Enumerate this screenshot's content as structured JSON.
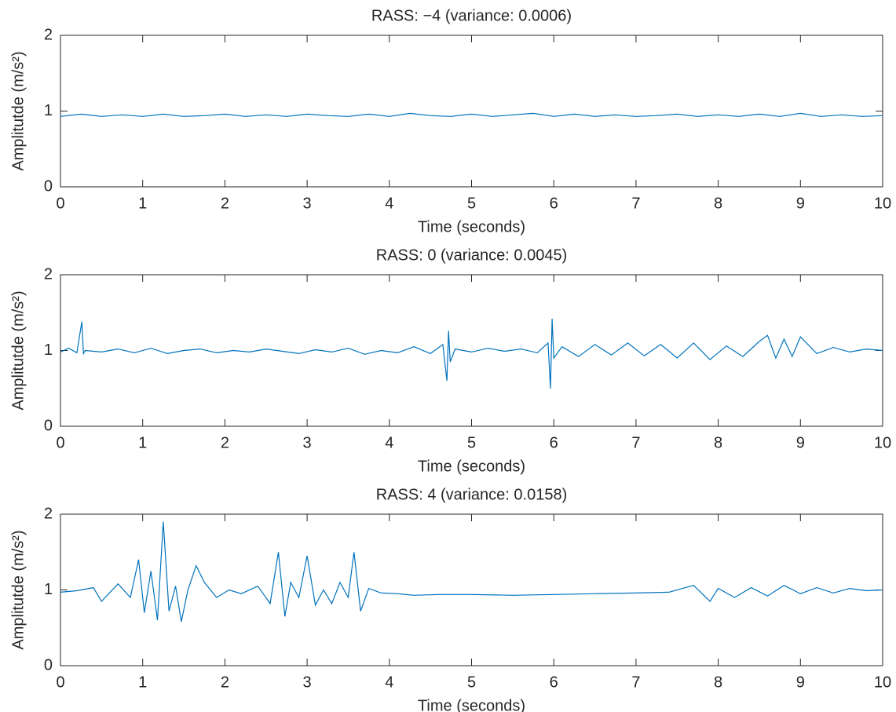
{
  "chart_data": [
    {
      "type": "line",
      "title": "RASS: −4 (variance: 0.0006)",
      "xlabel": "Time (seconds)",
      "ylabel": "Amplitutde (m/s²)",
      "x": [
        0,
        0.25,
        0.5,
        0.75,
        1,
        1.25,
        1.5,
        1.75,
        2,
        2.25,
        2.5,
        2.75,
        3,
        3.25,
        3.5,
        3.75,
        4,
        4.25,
        4.5,
        4.75,
        5,
        5.25,
        5.5,
        5.75,
        6,
        6.25,
        6.5,
        6.75,
        7,
        7.25,
        7.5,
        7.75,
        8,
        8.25,
        8.5,
        8.75,
        9,
        9.25,
        9.5,
        9.75,
        10
      ],
      "values": [
        0.93,
        0.96,
        0.93,
        0.95,
        0.93,
        0.96,
        0.93,
        0.94,
        0.96,
        0.93,
        0.95,
        0.93,
        0.96,
        0.94,
        0.93,
        0.96,
        0.93,
        0.97,
        0.94,
        0.93,
        0.96,
        0.93,
        0.95,
        0.97,
        0.93,
        0.96,
        0.93,
        0.95,
        0.93,
        0.94,
        0.96,
        0.93,
        0.95,
        0.93,
        0.96,
        0.93,
        0.97,
        0.93,
        0.95,
        0.93,
        0.94
      ],
      "color": "#0072bd",
      "xlim": [
        0,
        10
      ],
      "ylim": [
        0,
        2
      ],
      "xticks": [
        0,
        1,
        2,
        3,
        4,
        5,
        6,
        7,
        8,
        9,
        10
      ],
      "yticks": [
        0,
        1,
        2
      ]
    },
    {
      "type": "line",
      "title": "RASS: 0 (variance: 0.0045)",
      "xlabel": "Time (seconds)",
      "ylabel": "Amplitutde (m/s²)",
      "x": [
        0,
        0.1,
        0.2,
        0.26,
        0.28,
        0.3,
        0.5,
        0.7,
        0.9,
        1.1,
        1.3,
        1.5,
        1.7,
        1.9,
        2.1,
        2.3,
        2.5,
        2.7,
        2.9,
        3.1,
        3.3,
        3.5,
        3.7,
        3.9,
        4.1,
        4.3,
        4.5,
        4.65,
        4.7,
        4.72,
        4.74,
        4.8,
        5.0,
        5.2,
        5.4,
        5.6,
        5.8,
        5.93,
        5.96,
        5.98,
        6.0,
        6.1,
        6.3,
        6.5,
        6.7,
        6.9,
        7.1,
        7.3,
        7.5,
        7.7,
        7.9,
        8.1,
        8.3,
        8.5,
        8.6,
        8.7,
        8.8,
        8.9,
        9.0,
        9.2,
        9.4,
        9.6,
        9.8,
        10
      ],
      "values": [
        0.98,
        1.03,
        0.97,
        1.38,
        0.96,
        1.0,
        0.98,
        1.02,
        0.97,
        1.03,
        0.96,
        1.0,
        1.02,
        0.97,
        1.0,
        0.98,
        1.02,
        0.99,
        0.96,
        1.01,
        0.98,
        1.03,
        0.95,
        1.0,
        0.97,
        1.05,
        0.96,
        1.08,
        0.6,
        1.26,
        0.85,
        1.02,
        0.98,
        1.03,
        0.99,
        1.02,
        0.97,
        1.1,
        0.5,
        1.42,
        0.9,
        1.05,
        0.92,
        1.08,
        0.94,
        1.1,
        0.93,
        1.08,
        0.9,
        1.1,
        0.88,
        1.06,
        0.92,
        1.12,
        1.2,
        0.9,
        1.15,
        0.92,
        1.18,
        0.96,
        1.04,
        0.98,
        1.02,
        1.0
      ],
      "color": "#0072bd",
      "xlim": [
        0,
        10
      ],
      "ylim": [
        0,
        2
      ],
      "xticks": [
        0,
        1,
        2,
        3,
        4,
        5,
        6,
        7,
        8,
        9,
        10
      ],
      "yticks": [
        0,
        1,
        2
      ]
    },
    {
      "type": "line",
      "title": "RASS: 4 (variance: 0.0158)",
      "xlabel": "Time (seconds)",
      "ylabel": "Amplitutde (m/s²)",
      "x": [
        0,
        0.2,
        0.4,
        0.5,
        0.7,
        0.85,
        0.95,
        1.02,
        1.1,
        1.18,
        1.25,
        1.32,
        1.4,
        1.47,
        1.55,
        1.65,
        1.75,
        1.9,
        2.05,
        2.2,
        2.4,
        2.55,
        2.65,
        2.73,
        2.8,
        2.9,
        3.0,
        3.1,
        3.2,
        3.3,
        3.4,
        3.5,
        3.57,
        3.65,
        3.75,
        3.9,
        4.1,
        4.3,
        4.6,
        5.0,
        5.5,
        6.0,
        6.5,
        7.0,
        7.4,
        7.7,
        7.9,
        8.0,
        8.2,
        8.4,
        8.6,
        8.8,
        9.0,
        9.2,
        9.4,
        9.6,
        9.8,
        10
      ],
      "values": [
        0.97,
        0.99,
        1.03,
        0.85,
        1.08,
        0.9,
        1.4,
        0.7,
        1.25,
        0.6,
        1.9,
        0.72,
        1.05,
        0.58,
        1.0,
        1.32,
        1.1,
        0.9,
        1.0,
        0.95,
        1.05,
        0.82,
        1.5,
        0.65,
        1.1,
        0.9,
        1.45,
        0.8,
        1.0,
        0.82,
        1.1,
        0.9,
        1.5,
        0.72,
        1.02,
        0.96,
        0.95,
        0.93,
        0.94,
        0.94,
        0.93,
        0.94,
        0.95,
        0.96,
        0.97,
        1.06,
        0.85,
        1.02,
        0.9,
        1.03,
        0.92,
        1.06,
        0.95,
        1.03,
        0.96,
        1.02,
        0.99,
        1.0
      ],
      "color": "#0072bd",
      "xlim": [
        0,
        10
      ],
      "ylim": [
        0,
        2
      ],
      "xticks": [
        0,
        1,
        2,
        3,
        4,
        5,
        6,
        7,
        8,
        9,
        10
      ],
      "yticks": [
        0,
        1,
        2
      ]
    }
  ]
}
